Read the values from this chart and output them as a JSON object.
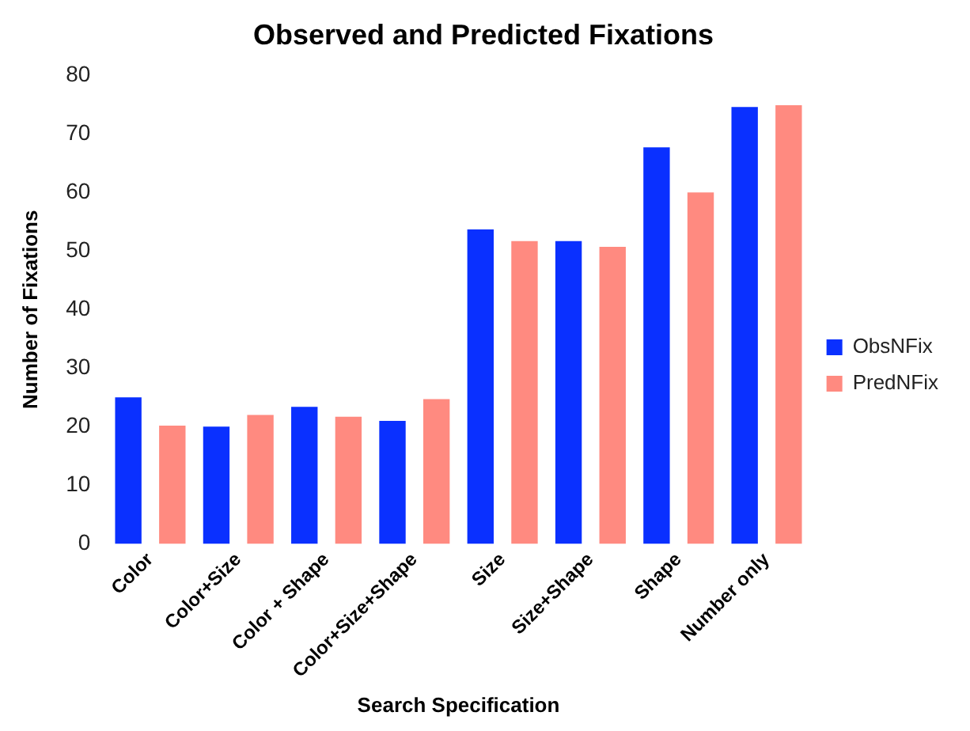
{
  "chart_data": {
    "type": "bar",
    "title": "Observed and Predicted Fixations",
    "xlabel": "Search Specification",
    "ylabel": "Number of Fixations",
    "categories": [
      "Color",
      "Color+Size",
      "Color + Shape",
      "Color+Size+Shape",
      "Size",
      "Size+Shape",
      "Shape",
      "Number only"
    ],
    "series": [
      {
        "name": "ObsNFix",
        "color": "#0a30ff",
        "values": [
          25,
          20,
          23.4,
          21,
          53.7,
          51.7,
          67.7,
          74.6
        ]
      },
      {
        "name": "PredNFix",
        "color": "#ff8a80",
        "values": [
          20.2,
          22,
          21.7,
          24.7,
          51.7,
          50.7,
          60,
          74.9
        ]
      }
    ],
    "ylim": [
      0,
      80
    ],
    "yticks": [
      0,
      10,
      20,
      30,
      40,
      50,
      60,
      70,
      80
    ],
    "grid": false,
    "legend": "right"
  }
}
